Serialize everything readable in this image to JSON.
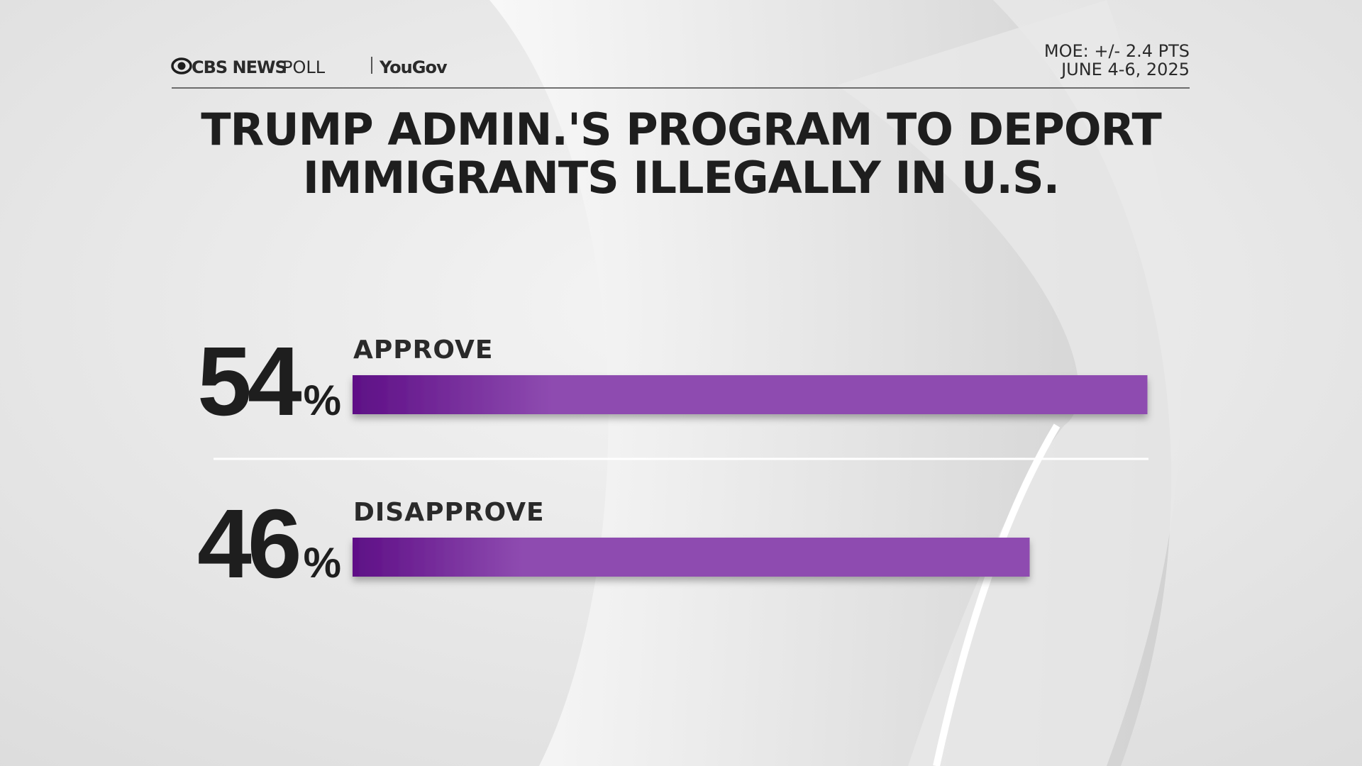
{
  "header": {
    "brand": "CBS NEWS",
    "product": "POLL",
    "partner": "YouGov",
    "moe": "MOE: +/- 2.4 PTS",
    "dates": "JUNE 4-6, 2025"
  },
  "chart_data": {
    "type": "bar",
    "orientation": "horizontal",
    "title": [
      "TRUMP ADMIN.'S PROGRAM TO DEPORT",
      "IMMIGRANTS ILLEGALLY IN U.S."
    ],
    "categories": [
      "APPROVE",
      "DISAPPROVE"
    ],
    "values": [
      54,
      46
    ],
    "value_labels": [
      "54%",
      "46%"
    ],
    "color": "#8e4bb0"
  }
}
